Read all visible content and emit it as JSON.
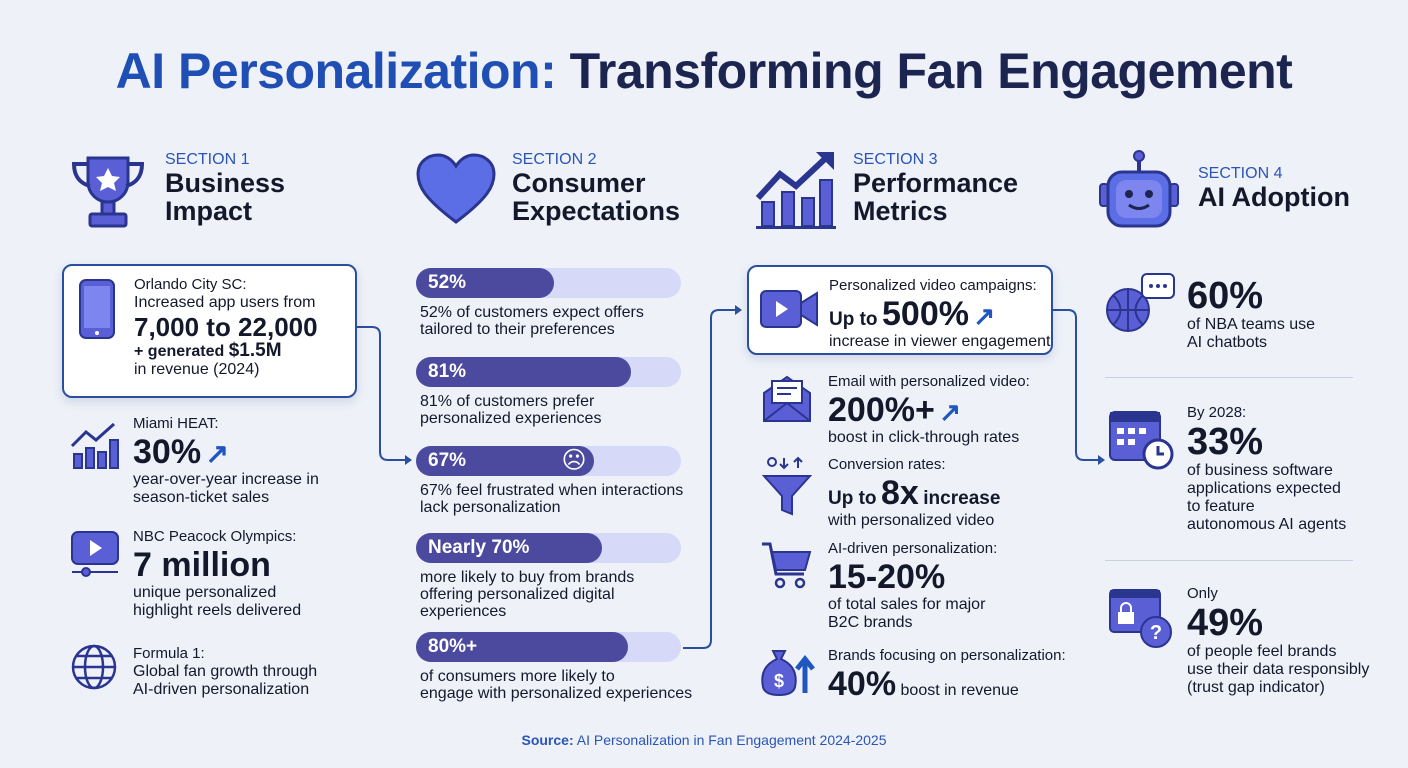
{
  "title": {
    "part1": "AI Personalization:",
    "part2": "Transforming Fan Engagement"
  },
  "colors": {
    "accent": "#1f4fb5",
    "icon": "#5b5fd6",
    "bar_fill": "#4b4a9e",
    "bar_track": "#d6d9f7",
    "background": "#eef1f8"
  },
  "sections": [
    {
      "label": "SECTION 1",
      "title_line1": "Business",
      "title_line2": "Impact",
      "icon": "trophy-icon"
    },
    {
      "label": "SECTION 2",
      "title_line1": "Consumer",
      "title_line2": "Expectations",
      "icon": "heart-icon"
    },
    {
      "label": "SECTION 3",
      "title_line1": "Performance",
      "title_line2": "Metrics",
      "icon": "growth-chart-icon"
    },
    {
      "label": "SECTION 4",
      "title_line1": "AI Adoption",
      "icon": "robot-icon"
    }
  ],
  "business": {
    "orlando": {
      "label": "Orlando City SC:",
      "line1": "Increased app users from",
      "big": "7,000 to 22,000",
      "plus": "+ generated",
      "revenue": "$1.5M",
      "line3": "in revenue (2024)"
    },
    "heat": {
      "label": "Miami HEAT:",
      "big": "30%",
      "desc1": "year-over-year increase in",
      "desc2": "season-ticket sales"
    },
    "nbc": {
      "label": "NBC Peacock Olympics:",
      "big": "7 million",
      "desc1": "unique personalized",
      "desc2": "highlight reels delivered"
    },
    "f1": {
      "label": "Formula 1:",
      "desc1": "Global fan growth through",
      "desc2": "AI-driven personalization"
    }
  },
  "consumer": [
    {
      "bar": "52%",
      "value": 52,
      "desc": [
        "52% of customers expect offers",
        "tailored to their preferences"
      ]
    },
    {
      "bar": "81%",
      "value": 81,
      "desc": [
        "81% of customers prefer",
        "personalized experiences"
      ]
    },
    {
      "bar": "67%",
      "value": 67,
      "desc": [
        "67% feel frustrated when interactions",
        "lack personalization"
      ]
    },
    {
      "bar": "Nearly 70%",
      "value": 70,
      "desc": [
        "more likely to buy from brands",
        "offering personalized digital",
        "experiences"
      ]
    },
    {
      "bar": "80%+",
      "value": 80,
      "desc": [
        "of consumers more likely to",
        "engage with personalized experiences"
      ]
    }
  ],
  "performance": {
    "video": {
      "label": "Personalized video campaigns:",
      "prefix": "Up to",
      "big": "500%",
      "desc": "increase in viewer engagement"
    },
    "email": {
      "label": "Email with personalized video:",
      "big": "200%+",
      "desc": "boost in click-through rates"
    },
    "conversion": {
      "label": "Conversion rates:",
      "prefix": "Up to",
      "big": "8x",
      "suffix": "increase",
      "desc": "with personalized video"
    },
    "ai": {
      "label": "AI-driven personalization:",
      "big": "15-20%",
      "desc1": "of total sales for major",
      "desc2": "B2C brands"
    },
    "brands": {
      "label": "Brands focusing on personalization:",
      "big": "40%",
      "desc": "boost in revenue"
    }
  },
  "adoption": {
    "nba": {
      "big": "60%",
      "desc1": "of NBA teams use",
      "desc2": "AI chatbots"
    },
    "software": {
      "label": "By 2028:",
      "big": "33%",
      "desc": [
        "of business software",
        "applications expected",
        "to feature",
        "autonomous AI agents"
      ]
    },
    "trust": {
      "label": "Only",
      "big": "49%",
      "desc": [
        "of people feel brands",
        "use their data responsibly",
        "(trust gap indicator)"
      ]
    }
  },
  "source": {
    "label": "Source:",
    "text": "AI Personalization in Fan Engagement 2024-2025"
  }
}
